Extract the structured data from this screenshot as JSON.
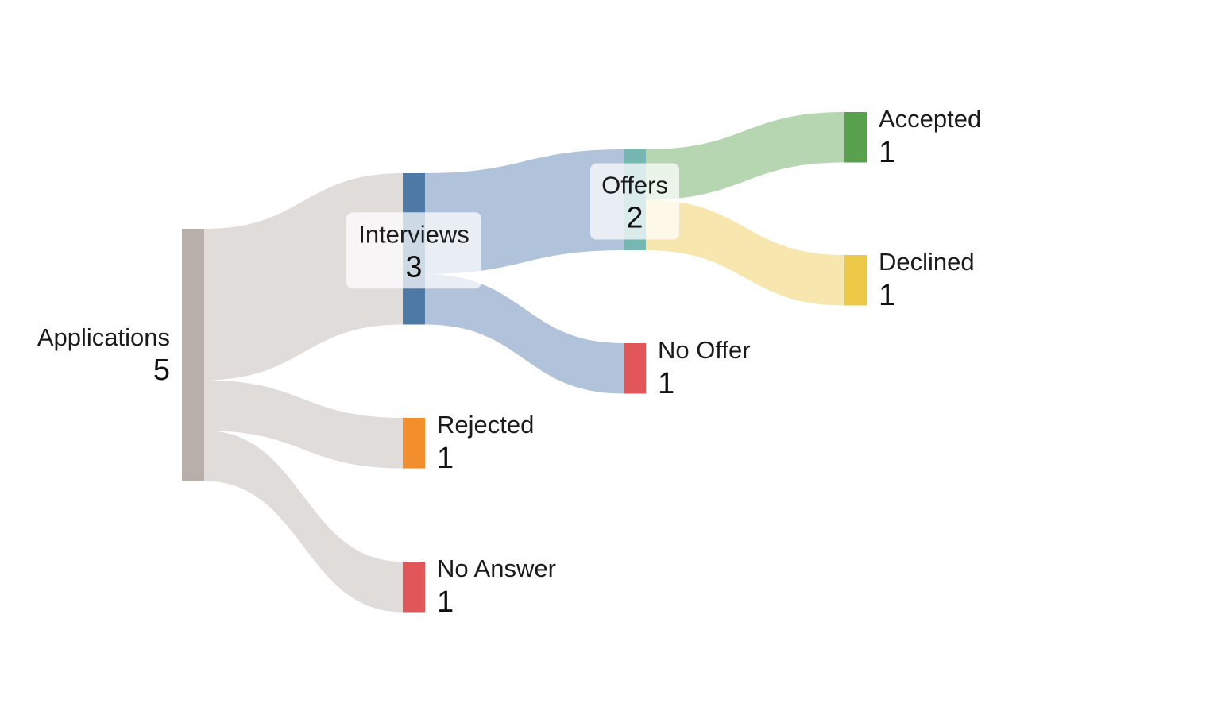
{
  "chart_data": {
    "type": "sankey",
    "nodes": [
      {
        "id": "applications",
        "name": "Applications",
        "value": 5,
        "color": "#b8afab"
      },
      {
        "id": "interviews",
        "name": "Interviews",
        "value": 3,
        "color": "#4e79a7"
      },
      {
        "id": "rejected",
        "name": "Rejected",
        "value": 1,
        "color": "#f28e2b"
      },
      {
        "id": "no_answer",
        "name": "No Answer",
        "value": 1,
        "color": "#e15759"
      },
      {
        "id": "offers",
        "name": "Offers",
        "value": 2,
        "color": "#76b7b2"
      },
      {
        "id": "no_offer",
        "name": "No Offer",
        "value": 1,
        "color": "#e15759"
      },
      {
        "id": "accepted",
        "name": "Accepted",
        "value": 1,
        "color": "#59a14f"
      },
      {
        "id": "declined",
        "name": "Declined",
        "value": 1,
        "color": "#edc948"
      }
    ],
    "links": [
      {
        "source": "applications",
        "target": "interviews",
        "value": 3,
        "color": "#e0dcda"
      },
      {
        "source": "applications",
        "target": "rejected",
        "value": 1,
        "color": "#e0dcda"
      },
      {
        "source": "applications",
        "target": "no_answer",
        "value": 1,
        "color": "#e0dcda"
      },
      {
        "source": "interviews",
        "target": "offers",
        "value": 2,
        "color": "#b0c3da"
      },
      {
        "source": "interviews",
        "target": "no_offer",
        "value": 1,
        "color": "#b0c3da"
      },
      {
        "source": "offers",
        "target": "accepted",
        "value": 1,
        "color": "#b5d6b0"
      },
      {
        "source": "offers",
        "target": "declined",
        "value": 1,
        "color": "#f7e6ae"
      }
    ]
  }
}
